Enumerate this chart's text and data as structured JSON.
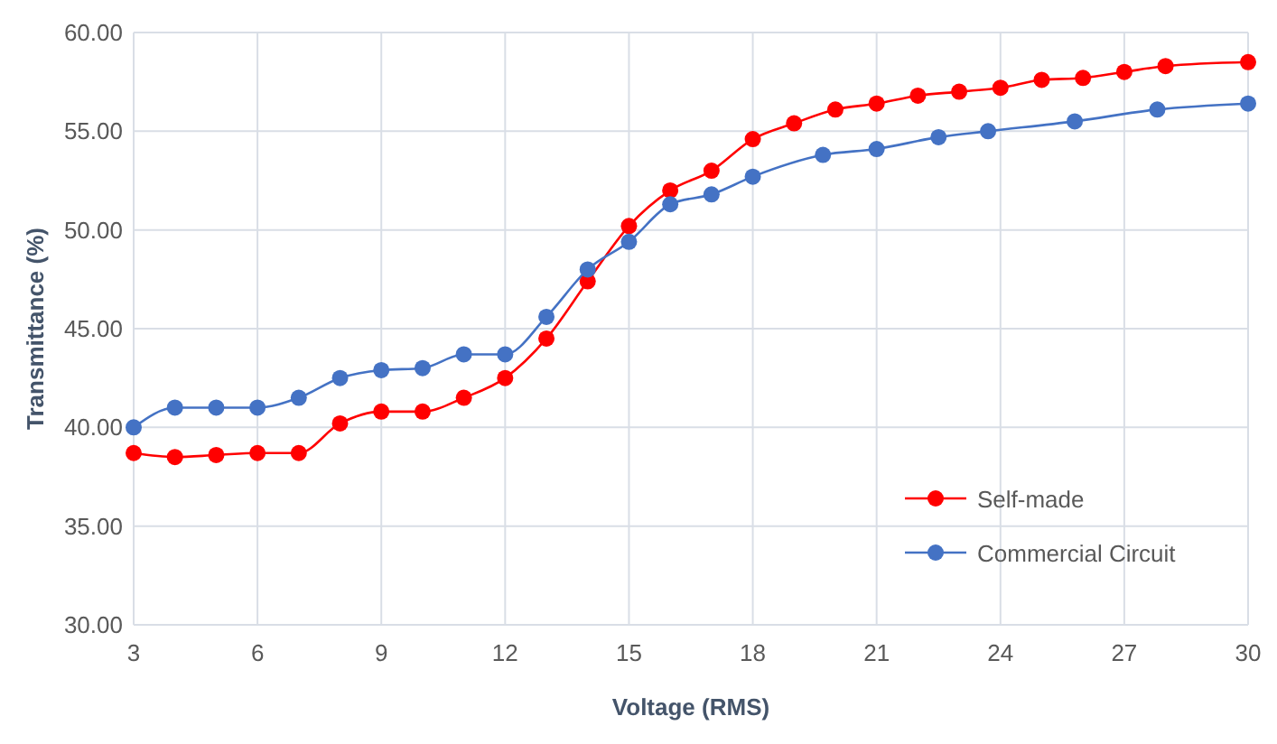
{
  "chart_data": {
    "type": "line",
    "xlabel": "Voltage (RMS)",
    "ylabel": "Transmittance (%)",
    "xlim": [
      3,
      30
    ],
    "xticks": [
      3,
      6,
      9,
      12,
      15,
      18,
      21,
      24,
      27,
      30
    ],
    "ylim": [
      30,
      60
    ],
    "yticks": [
      {
        "value": 30,
        "label": "30.00"
      },
      {
        "value": 35,
        "label": "35.00"
      },
      {
        "value": 40,
        "label": "40.00"
      },
      {
        "value": 45,
        "label": "45.00"
      },
      {
        "value": 50,
        "label": "50.00"
      },
      {
        "value": 55,
        "label": "55.00"
      },
      {
        "value": 60,
        "label": "60.00"
      }
    ],
    "grid": true,
    "legend": "bottom right",
    "marker": "circle",
    "line_style": "solid",
    "series": [
      {
        "name": "Self-made",
        "color": "#ff0000",
        "x": [
          3,
          4,
          5,
          6,
          7,
          8,
          9,
          10,
          11,
          12,
          13,
          14,
          15,
          16,
          17,
          18,
          19,
          20,
          21,
          22,
          23,
          24,
          25,
          26,
          27,
          28,
          30
        ],
        "values": [
          38.7,
          38.5,
          38.6,
          38.7,
          38.7,
          40.2,
          40.8,
          40.8,
          41.5,
          42.5,
          44.5,
          47.4,
          50.2,
          52,
          53,
          54.6,
          55.4,
          56.1,
          56.4,
          56.8,
          57,
          57.2,
          57.6,
          57.7,
          58,
          58.3,
          58.5
        ]
      },
      {
        "name": "Commercial Circuit",
        "color": "#4472c4",
        "x": [
          3,
          4,
          5,
          6,
          7,
          8,
          9,
          10,
          11,
          12,
          13,
          14,
          15,
          16,
          17,
          18,
          19.7,
          21,
          22.5,
          23.7,
          25.8,
          27.8,
          30
        ],
        "values": [
          40,
          41,
          41,
          41,
          41.5,
          42.5,
          42.9,
          43,
          43.7,
          43.7,
          45.6,
          48,
          49.4,
          51.3,
          51.8,
          52.7,
          53.8,
          54.1,
          54.7,
          55,
          55.5,
          56.1,
          56.4
        ]
      }
    ]
  }
}
